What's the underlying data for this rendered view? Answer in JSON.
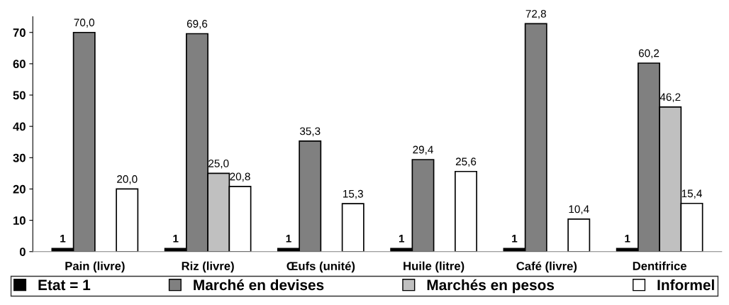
{
  "chart_data": {
    "type": "bar",
    "categories": [
      "Pain (livre)",
      "Riz (livre)",
      "Œufs (unité)",
      "Huile (litre)",
      "Café (livre)",
      "Dentifrice"
    ],
    "series": [
      {
        "name": "Etat = 1",
        "color": "#000000",
        "values": [
          1,
          1,
          1,
          1,
          1,
          1
        ],
        "value_labels": [
          "1",
          "1",
          "1",
          "1",
          "1",
          "1"
        ]
      },
      {
        "name": "Marché en devises",
        "color": "#808080",
        "values": [
          70.0,
          69.6,
          35.3,
          29.4,
          72.8,
          60.2
        ],
        "value_labels": [
          "70,0",
          "69,6",
          "35,3",
          "29,4",
          "72,8",
          "60,2"
        ]
      },
      {
        "name": "Marchés en pesos",
        "color": "#c0c0c0",
        "values": [
          null,
          25.0,
          null,
          null,
          null,
          46.2
        ],
        "value_labels": [
          null,
          "25,0",
          null,
          null,
          null,
          "46,2"
        ]
      },
      {
        "name": "Informel",
        "color": "#ffffff",
        "values": [
          20.0,
          20.8,
          15.3,
          25.6,
          10.4,
          15.4
        ],
        "value_labels": [
          "20,0",
          "20,8",
          "15,3",
          "25,6",
          "10,4",
          "15,4"
        ]
      }
    ],
    "ylim": [
      0,
      75
    ],
    "yticks": [
      0,
      10,
      20,
      30,
      40,
      50,
      60,
      70
    ],
    "grid": false,
    "legend": "bottom"
  }
}
